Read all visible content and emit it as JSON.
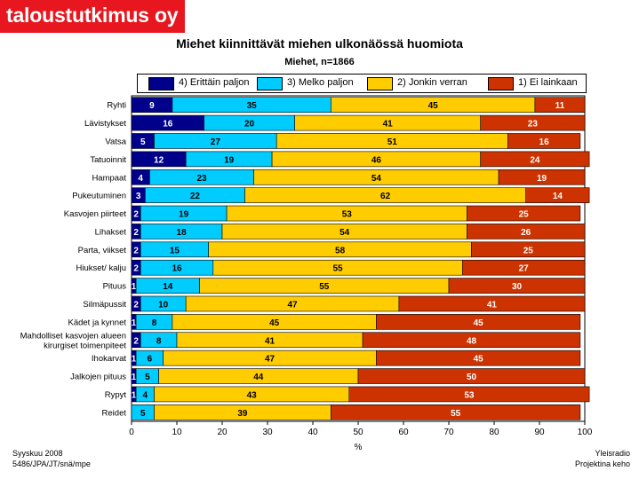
{
  "brand": {
    "logo_text": "taloustutkimus oy"
  },
  "footer": {
    "left_line1": "Syyskuu 2008",
    "left_line2": "5486/JPA/JT/snä/mpe",
    "right_line1": "Yleisradio",
    "right_line2": "Projektina keho"
  },
  "chart_data": {
    "type": "bar",
    "orientation": "horizontal",
    "stacked": true,
    "title": "Miehet kiinnittävät miehen ulkonäössä huomiota",
    "subtitle": "Miehet, n=1866",
    "xlabel": "%",
    "xlim": [
      0,
      100
    ],
    "xticks": [
      0,
      10,
      20,
      30,
      40,
      50,
      60,
      70,
      80,
      90,
      100
    ],
    "grid": false,
    "legend_position": "top",
    "categories": [
      "Ryhti",
      "Lävistykset",
      "Vatsa",
      "Tatuoinnit",
      "Hampaat",
      "Pukeutuminen",
      "Kasvojen piirteet",
      "Lihakset",
      "Parta, viikset",
      "Hiukset/ kalju",
      "Pituus",
      "Silmäpussit",
      "Kädet ja kynnet",
      "Mahdolliset kasvojen alueen kirurgiset toimenpiteet",
      "Ihokarvat",
      "Jalkojen pituus",
      "Rypyt",
      "Reidet"
    ],
    "category_label_lines": [
      [
        "Ryhti"
      ],
      [
        "Lävistykset"
      ],
      [
        "Vatsa"
      ],
      [
        "Tatuoinnit"
      ],
      [
        "Hampaat"
      ],
      [
        "Pukeutuminen"
      ],
      [
        "Kasvojen piirteet"
      ],
      [
        "Lihakset"
      ],
      [
        "Parta, viikset"
      ],
      [
        "Hiukset/ kalju"
      ],
      [
        "Pituus"
      ],
      [
        "Silmäpussit"
      ],
      [
        "Kädet ja kynnet"
      ],
      [
        "Mahdolliset kasvojen alueen",
        "kirurgiset toimenpiteet"
      ],
      [
        "Ihokarvat"
      ],
      [
        "Jalkojen pituus"
      ],
      [
        "Rypyt"
      ],
      [
        "Reidet"
      ]
    ],
    "series": [
      {
        "name": "4) Erittäin paljon",
        "color": "#00008b",
        "label_color": "#ffffff",
        "values": [
          9,
          16,
          5,
          12,
          4,
          3,
          2,
          2,
          2,
          2,
          1,
          2,
          1,
          2,
          1,
          1,
          1,
          0
        ]
      },
      {
        "name": "3) Melko paljon",
        "color": "#00ccff",
        "label_color": "#000000",
        "values": [
          35,
          20,
          27,
          19,
          23,
          22,
          19,
          18,
          15,
          16,
          14,
          10,
          8,
          8,
          6,
          5,
          4,
          5
        ]
      },
      {
        "name": "2) Jonkin verran",
        "color": "#ffcc00",
        "label_color": "#000000",
        "values": [
          45,
          41,
          51,
          46,
          54,
          62,
          53,
          54,
          58,
          55,
          55,
          47,
          45,
          41,
          47,
          44,
          43,
          39
        ]
      },
      {
        "name": "1) Ei lainkaan",
        "color": "#cc3300",
        "label_color": "#ffffff",
        "values": [
          11,
          23,
          16,
          24,
          19,
          14,
          25,
          26,
          25,
          27,
          30,
          41,
          45,
          48,
          45,
          50,
          53,
          55
        ]
      }
    ]
  }
}
